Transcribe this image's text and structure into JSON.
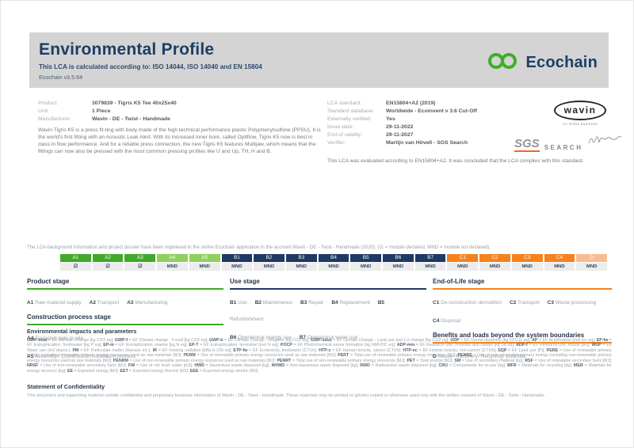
{
  "header": {
    "title": "Environmental Profile",
    "subtitle": "This LCA is calculated according to: ISO 14044, ISO 14040 and EN 15804",
    "version": "Ecochain v3.5.64",
    "logo_text": "Ecochain"
  },
  "colors": {
    "green": "#3FAA2A",
    "light_green": "#8FD05F",
    "navy": "#1E3A63",
    "orange": "#F58220",
    "light_orange": "#F7BD92",
    "ecochain_green": "#3FAE2A",
    "sgs_orange": "#F26522"
  },
  "product_info": {
    "rows": [
      {
        "label": "Product:",
        "value": "3079839 - Tigris K5 Tee 40x25x40"
      },
      {
        "label": "Unit:",
        "value": "1 Piece"
      },
      {
        "label": "Manufacturer:",
        "value": "Wavin - DE - Twist - Handmade"
      }
    ],
    "description": "Wavin Tigris K5 is a press fit-ting with body made of the high technical performance plastic Polyphenylsulfone (PPSU). It is the world's first fitting with an Acoustic Leak Alert. With its increased inner bore, called Optiflow, Tigris K5 now is best in class in flow performance. And for a reliable press connection, the new Tigris K5 features Multijaw, which means that the fittings can now also be pressed with the most common pressing profiles like U and Up, TH, H and B."
  },
  "lca_info": {
    "rows": [
      {
        "label": "LCA standard:",
        "value": "EN15804+A2 (2019)"
      },
      {
        "label": "Standard database:",
        "value": "Worldwide - Ecoinvent v 3.6 Cut-Off"
      },
      {
        "label": "Externally verified:",
        "value": "Yes"
      },
      {
        "label": "Issue date:",
        "value": "29-11-2022"
      },
      {
        "label": "End of validity:",
        "value": "29-11-2027"
      },
      {
        "label": "Verifier:",
        "value": "Martijn van Hövell - SGS Search"
      }
    ],
    "evaluation": "This LCA was evaluated according to EN15804+A2. It was concluded that the LCA complies with this standard."
  },
  "logos": {
    "wavin": "wavin",
    "wavin_sub": "An Orbia business",
    "sgs": "SGS",
    "search": "SEARCH"
  },
  "registration_note": "The LCA background information and project dossier have been registered in the online Ecochain application in the account Wavin - DE - Twist - Handmade (2020). (☑ = module declared, MND = module not declared).",
  "module_table": {
    "columns": [
      {
        "code": "A1",
        "status": "☑",
        "group": "green"
      },
      {
        "code": "A2",
        "status": "☑",
        "group": "green"
      },
      {
        "code": "A3",
        "status": "☑",
        "group": "green"
      },
      {
        "code": "A4",
        "status": "MND",
        "group": "light_green"
      },
      {
        "code": "A5",
        "status": "MND",
        "group": "light_green"
      },
      {
        "code": "B1",
        "status": "MND",
        "group": "navy"
      },
      {
        "code": "B2",
        "status": "MND",
        "group": "navy"
      },
      {
        "code": "B3",
        "status": "MND",
        "group": "navy"
      },
      {
        "code": "B4",
        "status": "MND",
        "group": "navy"
      },
      {
        "code": "B5",
        "status": "MND",
        "group": "navy"
      },
      {
        "code": "B6",
        "status": "MND",
        "group": "navy"
      },
      {
        "code": "B7",
        "status": "MND",
        "group": "navy"
      },
      {
        "code": "C1",
        "status": "MND",
        "group": "orange"
      },
      {
        "code": "C2",
        "status": "MND",
        "group": "orange"
      },
      {
        "code": "C3",
        "status": "MND",
        "group": "orange"
      },
      {
        "code": "C4",
        "status": "MND",
        "group": "orange"
      },
      {
        "code": "D",
        "status": "MND",
        "group": "light_orange"
      }
    ]
  },
  "stage_columns": [
    {
      "sections": [
        {
          "title": "Product stage",
          "accent": "green",
          "lines": [
            [
              {
                "code": "A1",
                "label": "Raw material supply"
              },
              {
                "code": "A2",
                "label": "Transport"
              },
              {
                "code": "A3",
                "label": "Manufacturing"
              }
            ]
          ]
        },
        {
          "title": "Construction process stage",
          "accent": "green",
          "lines": [
            [
              {
                "code": "A4",
                "label": "Transport gate to site"
              }
            ],
            [
              {
                "code": "A5",
                "label": "Assembly / Construction installation process"
              }
            ]
          ]
        }
      ]
    },
    {
      "sections": [
        {
          "title": "Use stage",
          "accent": "navy",
          "lines": [
            [
              {
                "code": "B1",
                "label": "Use"
              },
              {
                "code": "B2",
                "label": "Maintenance"
              },
              {
                "code": "B3",
                "label": "Repair"
              },
              {
                "code": "B4",
                "label": "Replacement"
              },
              {
                "code": "B5",
                "label": "Refurbishment"
              }
            ],
            [
              {
                "code": "B6",
                "label": "Operational energy use"
              },
              {
                "code": "B7",
                "label": "Operational water use"
              }
            ]
          ]
        }
      ]
    },
    {
      "sections": [
        {
          "title": "End-of-Life stage",
          "accent": "orange",
          "lines": [
            [
              {
                "code": "C1",
                "label": "De-construction demolition"
              },
              {
                "code": "C2",
                "label": "Transport"
              },
              {
                "code": "C3",
                "label": "Waste processing"
              }
            ],
            [
              {
                "code": "C4",
                "label": "Disposal"
              }
            ]
          ]
        },
        {
          "title": "Benefits and loads beyond the system boundaries",
          "accent": "orange",
          "lines": [
            [
              {
                "code": "D",
                "label": "Reuse- Recovery- Recycling- potential"
              }
            ]
          ]
        }
      ]
    }
  ],
  "impacts": {
    "heading": "Environmental impacts and parameters",
    "entries": [
      {
        "c": "GWP-total",
        "d": "EF Climate Change [kg CO2 eq]"
      },
      {
        "c": "GWP-f",
        "d": "EF Climate change - Fossil [kg CO2 eq]"
      },
      {
        "c": "GWP-b",
        "d": "EF Climate Change - Biogenic [kg CO2 eq]"
      },
      {
        "c": "GWP-lulus",
        "d": "EF Climate Change - Land use and LU change [kg CO2 eq]"
      },
      {
        "c": "ODP",
        "d": "EF Ozone depletion [kg CFC11 eq]"
      },
      {
        "c": "AP",
        "d": "EF Acidification [mol H+ eq]"
      },
      {
        "c": "EP-fw",
        "d": "EF Eutrophication, freshwater [kg P eq]"
      },
      {
        "c": "EP-m",
        "d": "EF Eutrophication, marine [kg N eq]"
      },
      {
        "c": "EP-T",
        "d": "EF Eutrophication, terrestrial [mol N eq]"
      },
      {
        "c": "POCP",
        "d": "EF Photochemical ozone formation [kg NMVOC eq]"
      },
      {
        "c": "ADP-mm",
        "d": "EF Resource use, minerals and metals [kg Sb eq]"
      },
      {
        "c": "ADP-f",
        "d": "EF Resource use, fossils [MJ]"
      },
      {
        "c": "WDP",
        "d": "EF Water use (m3 depriv.)"
      },
      {
        "c": "PM",
        "d": "EF Particulate matter [disease inc.]"
      },
      {
        "c": "IR",
        "d": "EF Ionising radiation [kBq U-235 eq]"
      },
      {
        "c": "ETP-fw",
        "d": "EF Ecotoxicity, freshwater [CTUe]"
      },
      {
        "c": "HTP-c",
        "d": "EF Human toxicity, cancer [CTUh]"
      },
      {
        "c": "HTP-nc",
        "d": "EF Human toxicity, non-cancer [CTUh]"
      },
      {
        "c": "SQP",
        "d": "EF Land use [Pt]"
      },
      {
        "c": "PERE",
        "d": "Use of renewable primary energy excluding renewable primary energy resources used as raw materials [MJ]"
      },
      {
        "c": "PERM",
        "d": "Use of renewable primary energy resources used as raw materials [MJ]"
      },
      {
        "c": "PERT",
        "d": "Total use of renewable primary energy resources [MJ]"
      },
      {
        "c": "PENRE",
        "d": "Use of non renewable primary energy excluding non-renewable primary energy resources used as raw materials [MJ]"
      },
      {
        "c": "PENRM",
        "d": "Use of non-renewable primary energy resources used as raw materials [MJ]"
      },
      {
        "c": "PENRT",
        "d": "Total use of non-renewable primary energy resources [MJ]"
      },
      {
        "c": "PET",
        "d": "Total energy [MJ]"
      },
      {
        "c": "SM",
        "d": "Use of secondary material [kg]"
      },
      {
        "c": "RSF",
        "d": "Use of renewable secondary fuels [MJ]"
      },
      {
        "c": "NRSF",
        "d": "Use of non-renewable secondary fuels [MJ]"
      },
      {
        "c": "FW",
        "d": "Use of net fresh water [m3]"
      },
      {
        "c": "HWD",
        "d": "Hazardous waste disposed [kg]"
      },
      {
        "c": "NHWD",
        "d": "Non-hazardous waste disposed [kg]"
      },
      {
        "c": "RWD",
        "d": "Radioactive waste disposed [kg]"
      },
      {
        "c": "CRU",
        "d": "Components for re-use [kg]"
      },
      {
        "c": "MFR",
        "d": "Materials for recycling [kg]"
      },
      {
        "c": "MER",
        "d": "Materials for energy recovery [kg]"
      },
      {
        "c": "EE",
        "d": "Exported energy [MJ]"
      },
      {
        "c": "EET",
        "d": "Exported energy thermic [MJ]"
      },
      {
        "c": "EEE",
        "d": "Exported energy electric [MJ]"
      }
    ]
  },
  "confidentiality": {
    "heading": "Statement of Confidentiality",
    "text": "This document and supporting material contain confidential and proprietary business information of Wavin - DE - Twist - Handmade. These materials may be printed or (photo) copied or otherwise used only with the written consent of Wavin - DE - Twist - Handmade."
  }
}
